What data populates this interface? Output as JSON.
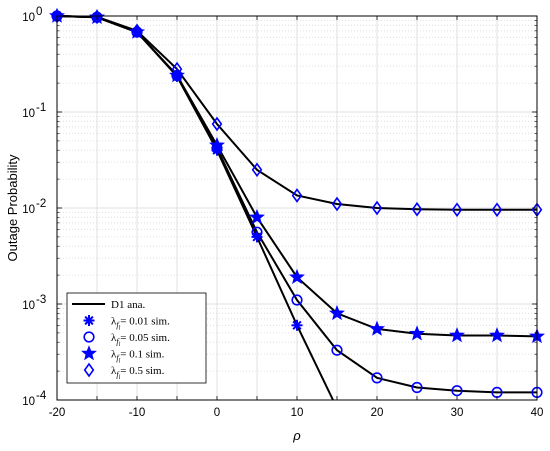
{
  "chart_data": {
    "type": "line",
    "xlabel": "ρ",
    "ylabel": "Outage Probability",
    "xlim": [
      -20,
      40
    ],
    "ylim": [
      0.0001,
      1
    ],
    "yscale": "log",
    "grid": true,
    "legend_position": "bottom-left",
    "x_ticks": [
      -20,
      -10,
      0,
      10,
      20,
      30,
      40
    ],
    "x_tick_labels": [
      "-20",
      "-10",
      "0",
      "10",
      "20",
      "30",
      "40"
    ],
    "y_ticks": [
      0.0001,
      0.001,
      0.01,
      0.1,
      1
    ],
    "y_tick_labels": [
      {
        "base": "10",
        "exp": "-4"
      },
      {
        "base": "10",
        "exp": "-3"
      },
      {
        "base": "10",
        "exp": "-2"
      },
      {
        "base": "10",
        "exp": "-1"
      },
      {
        "base": "10",
        "exp": "0"
      }
    ],
    "legend": [
      {
        "marker": "line",
        "parts": [
          {
            "t": "D1 ana."
          }
        ]
      },
      {
        "marker": "asterisk",
        "parts": [
          {
            "t": "λ"
          },
          {
            "t": "f",
            "sub": true
          },
          {
            "t": "l",
            "sub2": true
          },
          {
            "t": "= 0.01 sim."
          }
        ]
      },
      {
        "marker": "circle",
        "parts": [
          {
            "t": "λ"
          },
          {
            "t": "f",
            "sub": true
          },
          {
            "t": "l",
            "sub2": true
          },
          {
            "t": "= 0.05 sim."
          }
        ]
      },
      {
        "marker": "star",
        "parts": [
          {
            "t": "λ"
          },
          {
            "t": "f",
            "sub": true
          },
          {
            "t": "l",
            "sub2": true
          },
          {
            "t": "= 0.1 sim."
          }
        ]
      },
      {
        "marker": "diamond",
        "parts": [
          {
            "t": "λ"
          },
          {
            "t": "f",
            "sub": true
          },
          {
            "t": "l",
            "sub2": true
          },
          {
            "t": "= 0.5 sim."
          }
        ]
      }
    ],
    "series": [
      {
        "marker": "asterisk",
        "x": [
          -20,
          -15,
          -10,
          -5,
          0,
          5,
          10,
          14.5
        ],
        "y": [
          1.0,
          0.97,
          0.68,
          0.235,
          0.04,
          0.005,
          0.0006,
          0.0001
        ],
        "marker_x": [
          -20,
          -15,
          -10,
          -5,
          0,
          5,
          10
        ]
      },
      {
        "marker": "circle",
        "x": [
          -20,
          -15,
          -10,
          -5,
          0,
          5,
          10,
          15,
          20,
          25,
          30,
          35,
          40
        ],
        "y": [
          1.0,
          0.97,
          0.68,
          0.24,
          0.042,
          0.0056,
          0.0011,
          0.00033,
          0.00017,
          0.000135,
          0.000125,
          0.00012,
          0.00012
        ]
      },
      {
        "marker": "star",
        "x": [
          -20,
          -15,
          -10,
          -5,
          0,
          5,
          10,
          15,
          20,
          25,
          30,
          35,
          40
        ],
        "y": [
          1.0,
          0.97,
          0.68,
          0.24,
          0.045,
          0.008,
          0.0019,
          0.0008,
          0.00055,
          0.00049,
          0.00047,
          0.00047,
          0.00046
        ]
      },
      {
        "marker": "diamond",
        "x": [
          -20,
          -15,
          -10,
          -5,
          0,
          5,
          10,
          15,
          20,
          25,
          30,
          35,
          40
        ],
        "y": [
          1.0,
          0.98,
          0.7,
          0.28,
          0.075,
          0.025,
          0.0135,
          0.011,
          0.01,
          0.0097,
          0.0096,
          0.0096,
          0.0096
        ]
      }
    ],
    "colors": {
      "line": "#000000",
      "marker": "#0000ff",
      "grid": "#d9d9d9"
    }
  }
}
